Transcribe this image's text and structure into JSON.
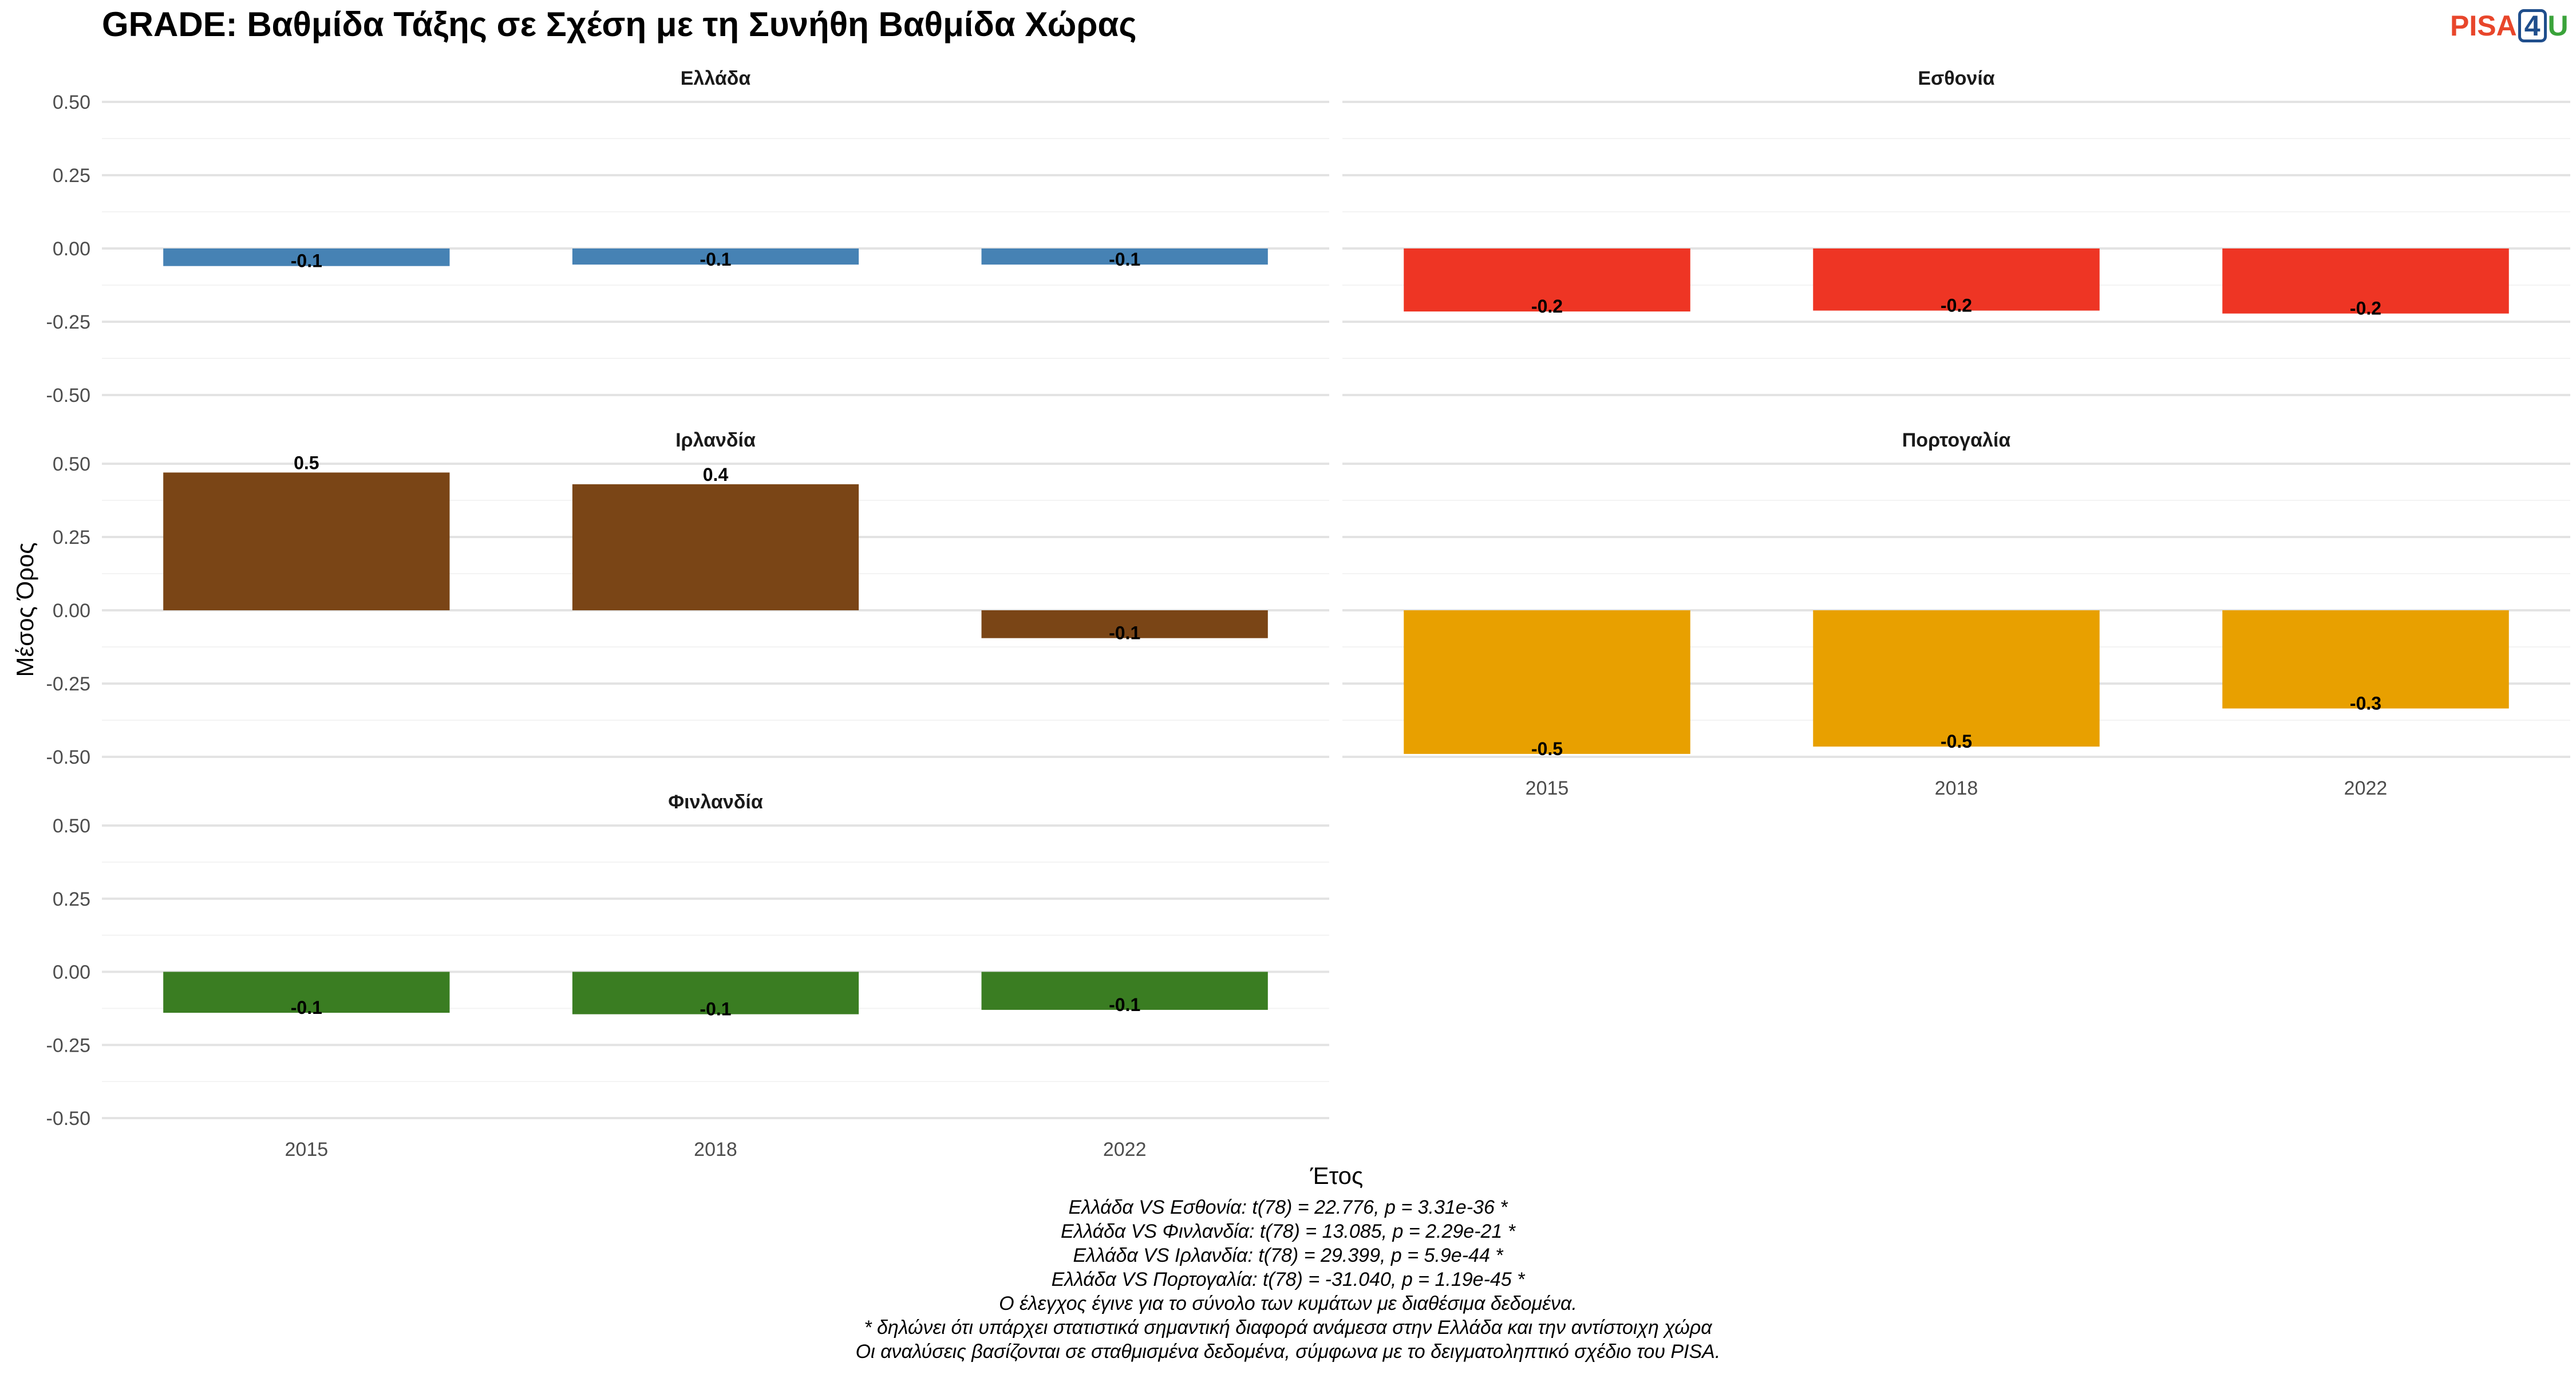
{
  "title": "GRADE: Βαθμίδα Τάξης σε Σχέση με τη Συνήθη Βαθμίδα Χώρας",
  "logo": {
    "part1": "PISA",
    "part2": "4",
    "part3": "U"
  },
  "chart_data": {
    "type": "bar",
    "xlabel": "Έτος",
    "ylabel": "Μέσος Όρος",
    "ylim": [
      -0.5,
      0.5
    ],
    "yticks": [
      "0.50",
      "0.25",
      "0.00",
      "-0.25",
      "-0.50"
    ],
    "categories": [
      "2015",
      "2018",
      "2022"
    ],
    "facets": [
      {
        "name": "Ελλάδα",
        "color": "#4682b4",
        "values": [
          -0.06,
          -0.055,
          -0.055
        ],
        "labels": [
          "-0.1",
          "-0.1",
          "-0.1"
        ]
      },
      {
        "name": "Εσθονία",
        "color": "#ee3524",
        "values": [
          -0.215,
          -0.212,
          -0.222
        ],
        "labels": [
          "-0.2",
          "-0.2",
          "-0.2"
        ]
      },
      {
        "name": "Ιρλανδία",
        "color": "#7a4516",
        "values": [
          0.47,
          0.43,
          -0.095
        ],
        "labels": [
          "0.5",
          "0.4",
          "-0.1"
        ]
      },
      {
        "name": "Πορτογαλία",
        "color": "#e8a000",
        "values": [
          -0.49,
          -0.465,
          -0.335
        ],
        "labels": [
          "-0.5",
          "-0.5",
          "-0.3"
        ]
      },
      {
        "name": "Φινλανδία",
        "color": "#3a7d22",
        "values": [
          -0.14,
          -0.145,
          -0.13
        ],
        "labels": [
          "-0.1",
          "-0.1",
          "-0.1"
        ]
      }
    ]
  },
  "notes": [
    "Ελλάδα VS Εσθονία: t(78) = 22.776, p = 3.31e-36 *",
    "Ελλάδα VS Φινλανδία: t(78) = 13.085, p = 2.29e-21 *",
    "Ελλάδα VS Ιρλανδία: t(78) = 29.399, p = 5.9e-44 *",
    "Ελλάδα VS Πορτογαλία: t(78) = -31.040, p = 1.19e-45 *",
    "Ο έλεγχος έγινε για το σύνολο των κυμάτων με διαθέσιμα δεδομένα.",
    "* δηλώνει ότι υπάρχει στατιστικά σημαντική διαφορά ανάμεσα στην Ελλάδα και την αντίστοιχη χώρα",
    "Οι αναλύσεις βασίζονται σε σταθμισμένα δεδομένα, σύμφωνα με το δειγματοληπτικό σχέδιο του PISA."
  ]
}
